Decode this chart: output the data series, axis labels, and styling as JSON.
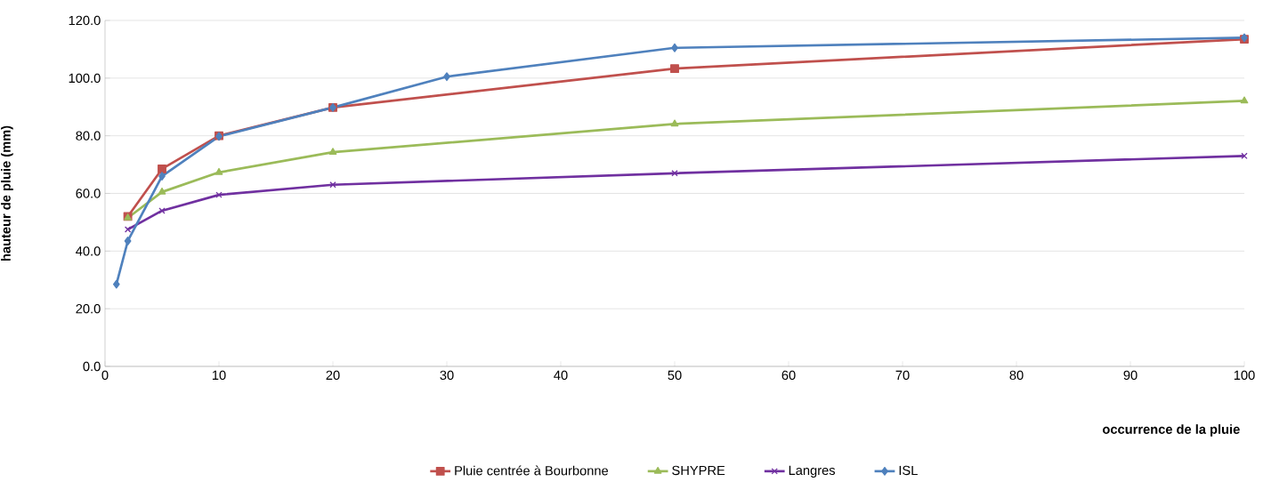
{
  "chart_data": {
    "type": "line",
    "xlabel": "occurrence de la pluie",
    "ylabel": "hauteur de pluie (mm)",
    "xlim": [
      0,
      100
    ],
    "xticks": [
      0,
      10,
      20,
      30,
      40,
      50,
      60,
      70,
      80,
      90,
      100
    ],
    "ylim": [
      0,
      120
    ],
    "yticks": [
      {
        "value": 0,
        "label": "0.0"
      },
      {
        "value": 20,
        "label": "20.0"
      },
      {
        "value": 40,
        "label": "40.0"
      },
      {
        "value": 60,
        "label": "60.0"
      },
      {
        "value": 80,
        "label": "80.0"
      },
      {
        "value": 100,
        "label": "100.0"
      },
      {
        "value": 120,
        "label": "120.0"
      }
    ],
    "grid": "y",
    "legend": "bottom",
    "series": [
      {
        "name": "Pluie centrée à Bourbonne",
        "color": "#c0504d",
        "marker": "square",
        "x": [
          2,
          5,
          10,
          20,
          50,
          100
        ],
        "values": [
          52,
          68.5,
          80,
          89.8,
          103.3,
          113.5
        ]
      },
      {
        "name": "SHYPRE",
        "color": "#9bbb59",
        "marker": "triangle",
        "x": [
          2,
          5,
          10,
          20,
          50,
          100
        ],
        "values": [
          51.5,
          60.5,
          67.3,
          74.3,
          84.1,
          92.1
        ]
      },
      {
        "name": "Langres",
        "color": "#7030a0",
        "marker": "cross",
        "x": [
          2,
          5,
          10,
          20,
          50,
          100
        ],
        "values": [
          47.5,
          54,
          59.5,
          63,
          67,
          73
        ]
      },
      {
        "name": "ISL",
        "color": "#4f81bd",
        "marker": "diamond",
        "x": [
          1,
          2,
          5,
          10,
          20,
          30,
          50,
          100
        ],
        "values": [
          28.5,
          43.5,
          66,
          79.8,
          89.8,
          100.5,
          110.5,
          114
        ]
      }
    ]
  }
}
